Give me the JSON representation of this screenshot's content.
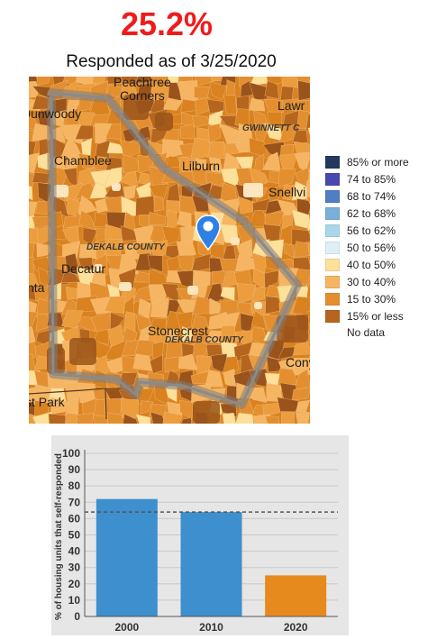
{
  "header": {
    "rate": "25.2%",
    "subtitle": "Responded as of 3/25/2020"
  },
  "map": {
    "labels": {
      "peachtree_corners": "Peachtree\nCorners",
      "dunwoody": "Dunwoody",
      "lawrenceville": "Lawr",
      "gwinnett_county": "GWINNETT C",
      "chamblee": "Chamblee",
      "lilburn": "Lilburn",
      "snellville": "Snellvi",
      "dekalb_county": "DEKALB COUNTY",
      "decatur": "Decatur",
      "atlanta": "nta",
      "stonecrest": "Stonecrest",
      "dekalb_county_2": "DEKALB COUNTY",
      "conyers": "Conye",
      "east_point": "st Park"
    },
    "marker_icon": "map-pin-icon",
    "colors": {
      "boundary": "#8a8a8a",
      "marker": "#2f80e5"
    }
  },
  "legend": {
    "items": [
      {
        "label": "85% or more",
        "color": "#213a5e"
      },
      {
        "label": "74 to 85%",
        "color": "#4848b0"
      },
      {
        "label": "68 to 74%",
        "color": "#4e7ec4"
      },
      {
        "label": "62 to 68%",
        "color": "#7aaedb"
      },
      {
        "label": "56 to 62%",
        "color": "#aad6ea"
      },
      {
        "label": "50 to 56%",
        "color": "#dff0f4"
      },
      {
        "label": "40 to 50%",
        "color": "#fde09a"
      },
      {
        "label": "30 to 40%",
        "color": "#f5b562"
      },
      {
        "label": "15 to 30%",
        "color": "#e38f30"
      },
      {
        "label": "15% or less",
        "color": "#b5651d"
      }
    ],
    "no_data": "No data"
  },
  "chart_data": {
    "type": "bar",
    "categories": [
      "2000",
      "2010",
      "2020"
    ],
    "values": [
      72,
      64,
      25.2
    ],
    "colors": [
      "#3d8fcd",
      "#3d8fcd",
      "#e68a1e"
    ],
    "reference_line": 64,
    "ylabel": "% of housing units that self-responded",
    "ylim": [
      0,
      100
    ],
    "yticks": [
      "0",
      "10",
      "20",
      "30",
      "40",
      "50",
      "60",
      "70",
      "80",
      "90",
      "100"
    ],
    "grid": true
  }
}
